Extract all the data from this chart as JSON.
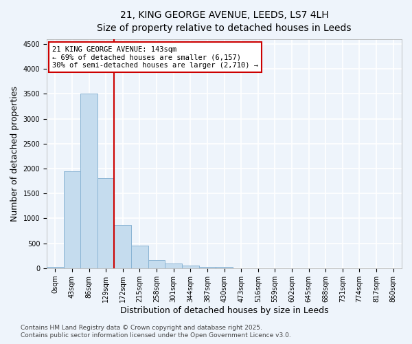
{
  "title_line1": "21, KING GEORGE AVENUE, LEEDS, LS7 4LH",
  "title_line2": "Size of property relative to detached houses in Leeds",
  "xlabel": "Distribution of detached houses by size in Leeds",
  "ylabel": "Number of detached properties",
  "categories": [
    "0sqm",
    "43sqm",
    "86sqm",
    "129sqm",
    "172sqm",
    "215sqm",
    "258sqm",
    "301sqm",
    "344sqm",
    "387sqm",
    "430sqm",
    "473sqm",
    "516sqm",
    "559sqm",
    "602sqm",
    "645sqm",
    "688sqm",
    "731sqm",
    "774sqm",
    "817sqm",
    "860sqm"
  ],
  "values": [
    20,
    1950,
    3500,
    1800,
    870,
    450,
    160,
    90,
    60,
    30,
    30,
    0,
    0,
    0,
    0,
    0,
    0,
    0,
    0,
    0,
    0
  ],
  "bar_color": "#c5dcee",
  "bar_edge_color": "#8ab4d4",
  "vline_x": 3.5,
  "vline_color": "#cc0000",
  "annotation_text": "21 KING GEORGE AVENUE: 143sqm\n← 69% of detached houses are smaller (6,157)\n30% of semi-detached houses are larger (2,710) →",
  "annotation_box_color": "white",
  "annotation_box_edge_color": "#cc0000",
  "ylim": [
    0,
    4600
  ],
  "yticks": [
    0,
    500,
    1000,
    1500,
    2000,
    2500,
    3000,
    3500,
    4000,
    4500
  ],
  "footnote_line1": "Contains HM Land Registry data © Crown copyright and database right 2025.",
  "footnote_line2": "Contains public sector information licensed under the Open Government Licence v3.0.",
  "bg_color": "#eef4fb",
  "plot_bg_color": "#eef4fb",
  "grid_color": "white",
  "title_fontsize": 10,
  "subtitle_fontsize": 9,
  "label_fontsize": 9,
  "tick_fontsize": 7,
  "annotation_fontsize": 7.5,
  "footnote_fontsize": 6.5
}
